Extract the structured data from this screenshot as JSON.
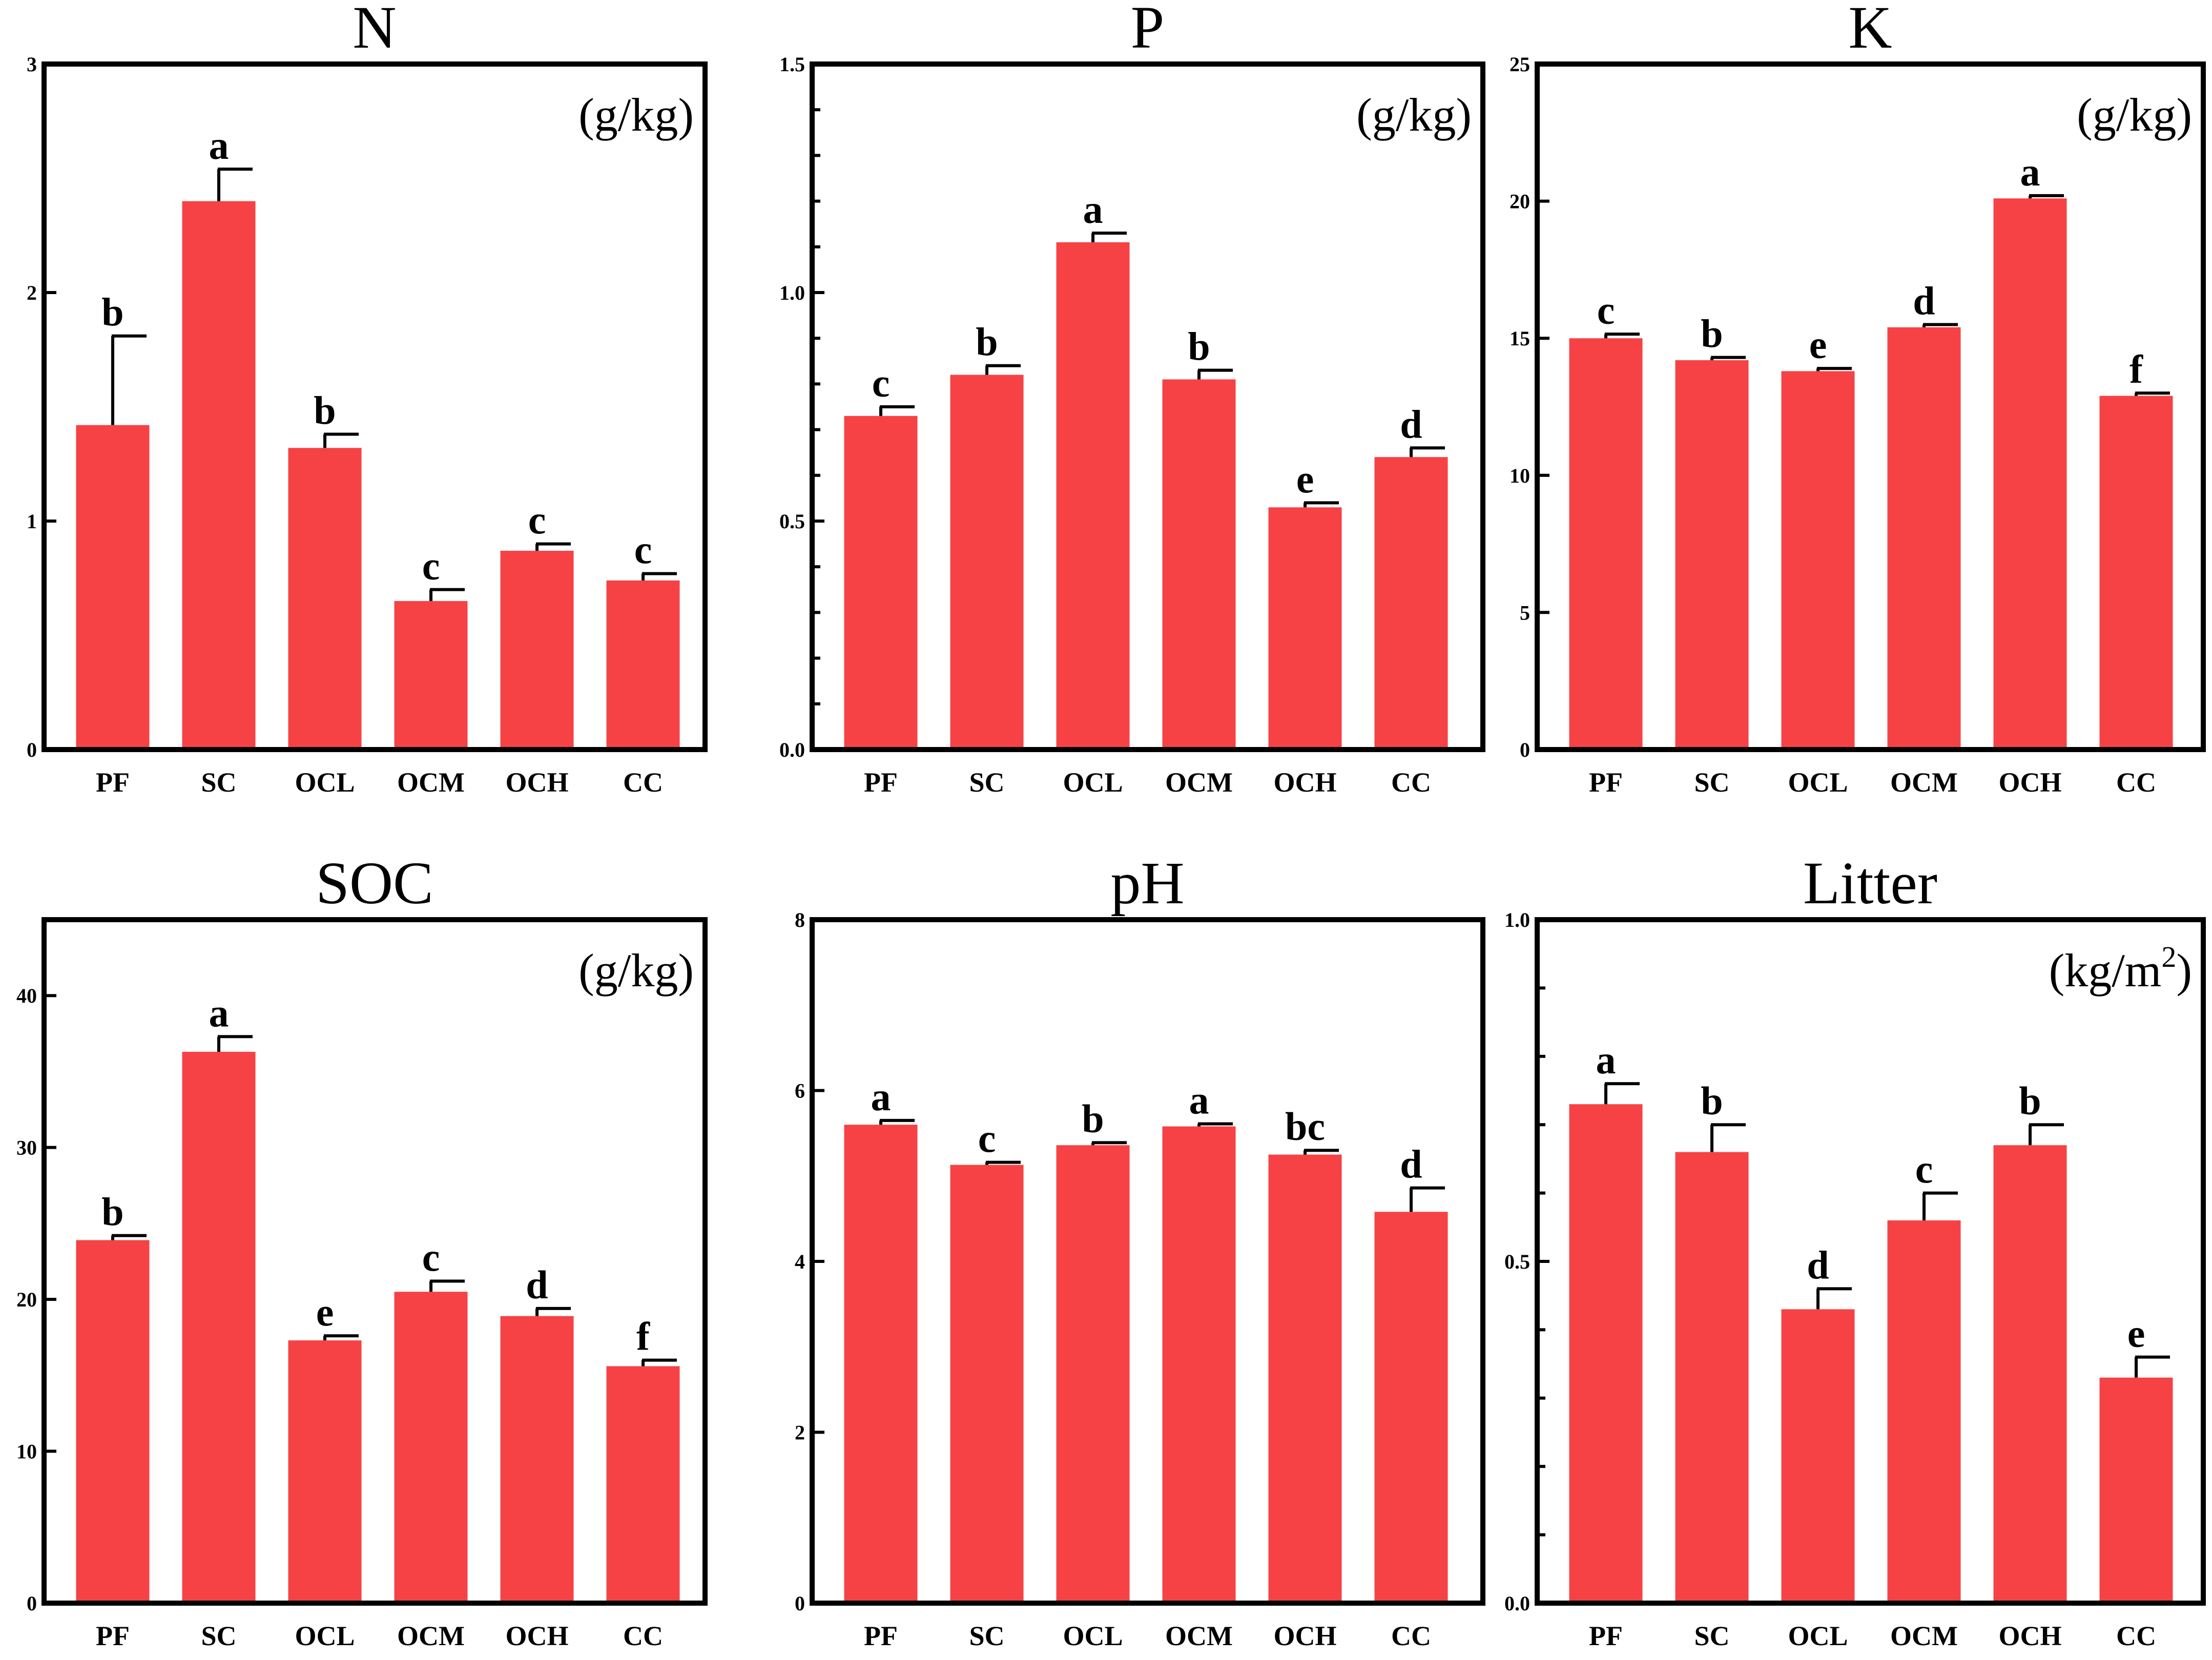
{
  "colors": {
    "bar": "#f64244",
    "axis": "#000000"
  },
  "chart_data": [
    {
      "type": "bar",
      "title": "N",
      "unit": {
        "base": "(g/kg)",
        "sup": ""
      },
      "categories": [
        "PF",
        "SC",
        "OCL",
        "OCM",
        "OCH",
        "CC"
      ],
      "values": [
        1.42,
        2.4,
        1.32,
        0.65,
        0.87,
        0.74
      ],
      "errors": [
        0.39,
        0.14,
        0.06,
        0.05,
        0.03,
        0.03
      ],
      "letters": [
        "b",
        "a",
        "b",
        "c",
        "c",
        "c"
      ],
      "ylim": [
        0,
        3
      ],
      "yticks": [
        0,
        1,
        2,
        3
      ],
      "ytick_labels": [
        "0",
        "1",
        "2",
        "3"
      ],
      "minor_ticks": 0
    },
    {
      "type": "bar",
      "title": "P",
      "unit": {
        "base": "(g/kg)",
        "sup": ""
      },
      "categories": [
        "PF",
        "SC",
        "OCL",
        "OCM",
        "OCH",
        "CC"
      ],
      "values": [
        0.73,
        0.82,
        1.11,
        0.81,
        0.53,
        0.64
      ],
      "errors": [
        0.02,
        0.02,
        0.02,
        0.02,
        0.01,
        0.02
      ],
      "letters": [
        "c",
        "b",
        "a",
        "b",
        "e",
        "d"
      ],
      "ylim": [
        0,
        1.5
      ],
      "yticks": [
        0,
        0.5,
        1.0,
        1.5
      ],
      "ytick_labels": [
        "0.0",
        "0.5",
        "1.0",
        "1.5"
      ],
      "minor_ticks": 4
    },
    {
      "type": "bar",
      "title": "K",
      "unit": {
        "base": "(g/kg)",
        "sup": ""
      },
      "categories": [
        "PF",
        "SC",
        "OCL",
        "OCM",
        "OCH",
        "CC"
      ],
      "values": [
        15.0,
        14.2,
        13.8,
        15.4,
        20.1,
        12.9
      ],
      "errors": [
        0.15,
        0.1,
        0.1,
        0.1,
        0.1,
        0.1
      ],
      "letters": [
        "c",
        "b",
        "e",
        "d",
        "a",
        "f"
      ],
      "ylim": [
        0,
        25
      ],
      "yticks": [
        0,
        5,
        10,
        15,
        20,
        25
      ],
      "ytick_labels": [
        "0",
        "5",
        "10",
        "15",
        "20",
        "25"
      ],
      "minor_ticks": 0
    },
    {
      "type": "bar",
      "title": "SOC",
      "unit": {
        "base": "(g/kg)",
        "sup": ""
      },
      "categories": [
        "PF",
        "SC",
        "OCL",
        "OCM",
        "OCH",
        "CC"
      ],
      "values": [
        23.9,
        36.3,
        17.3,
        20.5,
        18.9,
        15.6
      ],
      "errors": [
        0.3,
        1.0,
        0.3,
        0.7,
        0.5,
        0.4
      ],
      "letters": [
        "b",
        "a",
        "e",
        "c",
        "d",
        "f"
      ],
      "ylim": [
        0,
        45
      ],
      "yticks": [
        0,
        10,
        20,
        30,
        40
      ],
      "ytick_labels": [
        "0",
        "10",
        "20",
        "30",
        "40"
      ],
      "minor_ticks": 0
    },
    {
      "type": "bar",
      "title": "pH",
      "unit": {
        "base": "",
        "sup": ""
      },
      "categories": [
        "PF",
        "SC",
        "OCL",
        "OCM",
        "OCH",
        "CC"
      ],
      "values": [
        5.6,
        5.13,
        5.36,
        5.58,
        5.25,
        4.58
      ],
      "errors": [
        0.05,
        0.03,
        0.03,
        0.03,
        0.05,
        0.28
      ],
      "letters": [
        "a",
        "c",
        "b",
        "a",
        "bc",
        "d"
      ],
      "ylim": [
        0,
        8
      ],
      "yticks": [
        0,
        2,
        4,
        6,
        8
      ],
      "ytick_labels": [
        "0",
        "2",
        "4",
        "6",
        "8"
      ],
      "minor_ticks": 0
    },
    {
      "type": "bar",
      "title": "Litter",
      "unit": {
        "base": "(kg/m",
        "sup": "2"
      },
      "categories": [
        "PF",
        "SC",
        "OCL",
        "OCM",
        "OCH",
        "CC"
      ],
      "values": [
        0.73,
        0.66,
        0.43,
        0.56,
        0.67,
        0.33
      ],
      "errors": [
        0.03,
        0.04,
        0.03,
        0.04,
        0.03,
        0.03
      ],
      "letters": [
        "a",
        "b",
        "d",
        "c",
        "b",
        "e"
      ],
      "ylim": [
        0,
        1.0
      ],
      "yticks": [
        0,
        0.5,
        1.0
      ],
      "ytick_labels": [
        "0.0",
        "0.5",
        "1.0"
      ],
      "minor_ticks": 4
    }
  ]
}
